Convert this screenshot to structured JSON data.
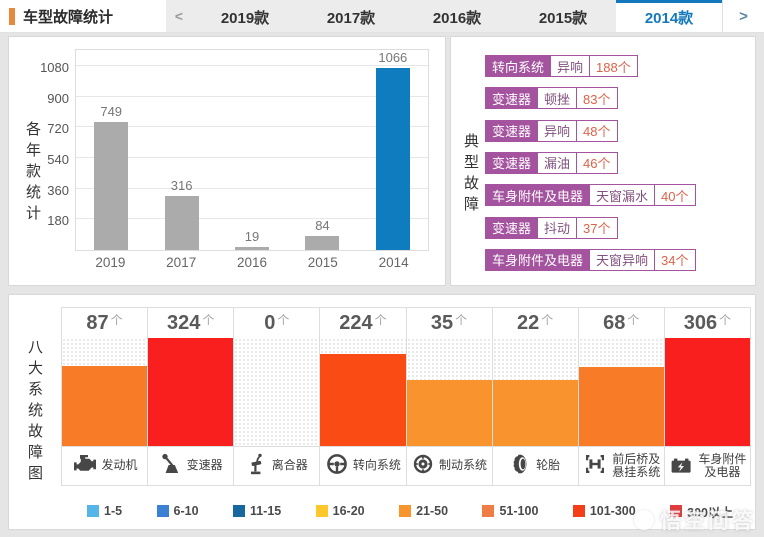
{
  "page": {
    "watermark": "悟空问答"
  },
  "header": {
    "title": "车型故障统计",
    "accent_color": "#e8883a",
    "prev_arrow": "<",
    "next_arrow": ">",
    "active_color": "#1478bd",
    "tabs": [
      {
        "label": "2019款",
        "active": false
      },
      {
        "label": "2017款",
        "active": false
      },
      {
        "label": "2016款",
        "active": false
      },
      {
        "label": "2015款",
        "active": false
      },
      {
        "label": "2014款",
        "active": true
      }
    ]
  },
  "typical_faults": {
    "panel_label": "典型故障",
    "accent_color": "#a4539e",
    "count_color": "#e0614a",
    "rows": [
      {
        "part": "转向系统",
        "symptom": "异响",
        "count": "188个"
      },
      {
        "part": "变速器",
        "symptom": "顿挫",
        "count": "83个"
      },
      {
        "part": "变速器",
        "symptom": "异响",
        "count": "48个"
      },
      {
        "part": "变速器",
        "symptom": "漏油",
        "count": "46个"
      },
      {
        "part": "车身附件及电器",
        "symptom": "天窗漏水",
        "count": "40个"
      },
      {
        "part": "变速器",
        "symptom": "抖动",
        "count": "37个"
      },
      {
        "part": "车身附件及电器",
        "symptom": "天窗异响",
        "count": "34个"
      }
    ]
  },
  "chart_data": [
    {
      "type": "bar",
      "panel_label": "各年款统计",
      "categories": [
        "2019",
        "2017",
        "2016",
        "2015",
        "2014"
      ],
      "values": [
        749,
        316,
        19,
        84,
        1066
      ],
      "bar_colors": [
        "#ababab",
        "#ababab",
        "#ababab",
        "#ababab",
        "#0f7cc0"
      ],
      "y_ticks": [
        180,
        360,
        540,
        720,
        900,
        1080
      ],
      "ylim": [
        0,
        1080
      ],
      "grid": true
    },
    {
      "type": "bar",
      "panel_label": "八大系统故障图",
      "unit": "个",
      "columns": [
        {
          "label_lines": [
            "发动机"
          ],
          "icon": "engine-icon",
          "value": 87,
          "bar_pct": 74,
          "color": "#f87b28"
        },
        {
          "label_lines": [
            "变速器"
          ],
          "icon": "gearshift-icon",
          "value": 324,
          "bar_pct": 100,
          "color": "#f91f1f"
        },
        {
          "label_lines": [
            "离合器"
          ],
          "icon": "clutch-pedal-icon",
          "value": 0,
          "bar_pct": 0,
          "color": "none"
        },
        {
          "label_lines": [
            "转向系统"
          ],
          "icon": "steering-wheel-icon",
          "value": 224,
          "bar_pct": 85,
          "color": "#fb4b14"
        },
        {
          "label_lines": [
            "制动系统"
          ],
          "icon": "brake-disc-icon",
          "value": 35,
          "bar_pct": 61,
          "color": "#f9932e"
        },
        {
          "label_lines": [
            "轮胎"
          ],
          "icon": "tire-icon",
          "value": 22,
          "bar_pct": 61,
          "color": "#f9932e"
        },
        {
          "label_lines": [
            "前后桥及",
            "悬挂系统"
          ],
          "icon": "axle-icon",
          "value": 68,
          "bar_pct": 73,
          "color": "#f87b28"
        },
        {
          "label_lines": [
            "车身附件",
            "及电器"
          ],
          "icon": "battery-icon",
          "value": 306,
          "bar_pct": 100,
          "color": "#f91f1f"
        }
      ],
      "legend": [
        {
          "label": "1-5",
          "color": "#55b5e9"
        },
        {
          "label": "6-10",
          "color": "#3c80d4"
        },
        {
          "label": "11-15",
          "color": "#17689e"
        },
        {
          "label": "16-20",
          "color": "#fdc62b"
        },
        {
          "label": "21-50",
          "color": "#f9952f"
        },
        {
          "label": "51-100",
          "color": "#ef7b45"
        },
        {
          "label": "101-300",
          "color": "#f43e18"
        },
        {
          "label": "300以上",
          "color": "#e13b3e"
        }
      ],
      "legend_position": "bottom"
    }
  ]
}
